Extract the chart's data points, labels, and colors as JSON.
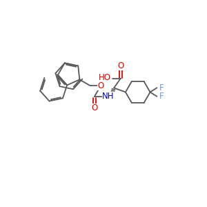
{
  "bg_color": "#ffffff",
  "bond_color": "#585858",
  "atom_colors": {
    "O": "#e00000",
    "N": "#0000cc",
    "F": "#6699ff",
    "C": "#585858"
  },
  "figsize": [
    3.0,
    3.0
  ],
  "dpi": 100,
  "lw": 1.3
}
